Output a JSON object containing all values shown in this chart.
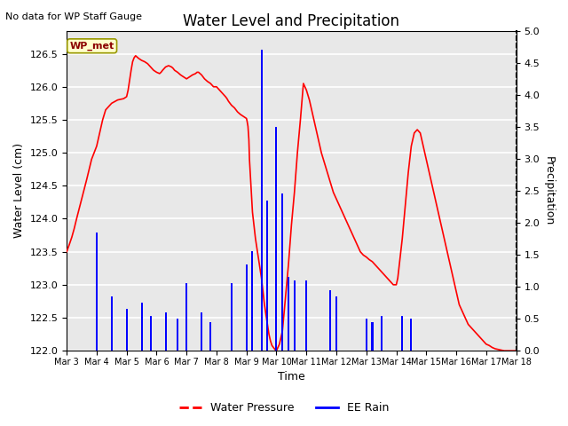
{
  "title": "Water Level and Precipitation",
  "subtitle": "No data for WP Staff Gauge",
  "xlabel": "Time",
  "ylabel_left": "Water Level (cm)",
  "ylabel_right": "Precipitation",
  "legend_label": "WP_met",
  "line1_label": "Water Pressure",
  "line2_label": "EE Rain",
  "ylim_left": [
    122.0,
    126.85
  ],
  "ylim_right": [
    0.0,
    5.0
  ],
  "yticks_left": [
    122.0,
    122.5,
    123.0,
    123.5,
    124.0,
    124.5,
    125.0,
    125.5,
    126.0,
    126.5
  ],
  "yticks_right": [
    0.0,
    0.5,
    1.0,
    1.5,
    2.0,
    2.5,
    3.0,
    3.5,
    4.0,
    4.5,
    5.0
  ],
  "axes_bg_color": "#e8e8e8",
  "grid_color": "white",
  "line1_color": "red",
  "line2_color": "blue",
  "water_level_x": [
    3.0,
    3.08,
    3.17,
    3.25,
    3.33,
    3.5,
    3.67,
    3.83,
    4.0,
    4.1,
    4.2,
    4.3,
    4.5,
    4.7,
    4.9,
    5.0,
    5.05,
    5.1,
    5.15,
    5.2,
    5.25,
    5.3,
    5.35,
    5.4,
    5.5,
    5.6,
    5.7,
    5.8,
    5.9,
    6.0,
    6.1,
    6.15,
    6.2,
    6.3,
    6.4,
    6.5,
    6.55,
    6.6,
    6.7,
    6.8,
    6.9,
    7.0,
    7.1,
    7.2,
    7.3,
    7.35,
    7.4,
    7.5,
    7.6,
    7.7,
    7.8,
    7.9,
    8.0,
    8.1,
    8.2,
    8.3,
    8.35,
    8.4,
    8.5,
    8.6,
    8.65,
    8.7,
    8.8,
    8.9,
    9.0,
    9.02,
    9.05,
    9.08,
    9.1,
    9.15,
    9.2,
    9.3,
    9.4,
    9.5,
    9.6,
    9.7,
    9.75,
    9.8,
    9.85,
    9.9,
    9.95,
    10.0,
    10.02,
    10.05,
    10.1,
    10.2,
    10.3,
    10.4,
    10.5,
    10.6,
    10.7,
    10.8,
    10.9,
    11.0,
    11.1,
    11.2,
    11.3,
    11.4,
    11.5,
    11.6,
    11.7,
    11.8,
    11.9,
    12.0,
    12.1,
    12.2,
    12.3,
    12.4,
    12.5,
    12.6,
    12.7,
    12.8,
    12.9,
    13.0,
    13.05,
    13.1,
    13.2,
    13.3,
    13.4,
    13.5,
    13.6,
    13.7,
    13.8,
    13.9,
    14.0,
    14.05,
    14.1,
    14.2,
    14.3,
    14.4,
    14.5,
    14.6,
    14.7,
    14.8,
    14.9,
    15.0,
    15.1,
    15.2,
    15.3,
    15.4,
    15.5,
    15.6,
    15.7,
    15.8,
    15.9,
    16.0,
    16.1,
    16.2,
    16.3,
    16.4,
    16.5,
    16.6,
    16.7,
    16.8,
    16.9,
    17.0,
    17.1,
    17.2,
    17.3,
    17.4,
    17.5,
    17.6,
    17.7,
    17.8,
    17.9,
    18.0
  ],
  "water_level_y": [
    123.5,
    123.6,
    123.72,
    123.85,
    124.0,
    124.3,
    124.6,
    124.9,
    125.1,
    125.3,
    125.5,
    125.65,
    125.75,
    125.8,
    125.82,
    125.85,
    125.95,
    126.1,
    126.25,
    126.38,
    126.44,
    126.47,
    126.45,
    126.43,
    126.4,
    126.38,
    126.35,
    126.3,
    126.25,
    126.22,
    126.2,
    126.22,
    126.25,
    126.3,
    126.32,
    126.3,
    126.28,
    126.25,
    126.22,
    126.18,
    126.15,
    126.12,
    126.15,
    126.18,
    126.2,
    126.22,
    126.22,
    126.18,
    126.12,
    126.08,
    126.05,
    126.0,
    126.0,
    125.95,
    125.9,
    125.85,
    125.82,
    125.78,
    125.72,
    125.68,
    125.65,
    125.62,
    125.58,
    125.55,
    125.52,
    125.48,
    125.4,
    125.2,
    124.9,
    124.5,
    124.1,
    123.7,
    123.4,
    123.1,
    122.7,
    122.4,
    122.25,
    122.15,
    122.08,
    122.05,
    122.02,
    122.0,
    122.02,
    122.05,
    122.1,
    122.3,
    122.8,
    123.3,
    123.9,
    124.4,
    125.0,
    125.5,
    126.05,
    125.95,
    125.8,
    125.6,
    125.4,
    125.2,
    125.0,
    124.85,
    124.7,
    124.55,
    124.4,
    124.3,
    124.2,
    124.1,
    124.0,
    123.9,
    123.8,
    123.7,
    123.6,
    123.5,
    123.45,
    123.42,
    123.4,
    123.38,
    123.35,
    123.3,
    123.25,
    123.2,
    123.15,
    123.1,
    123.05,
    123.0,
    123.0,
    123.1,
    123.3,
    123.7,
    124.2,
    124.7,
    125.1,
    125.3,
    125.35,
    125.3,
    125.1,
    124.9,
    124.7,
    124.5,
    124.3,
    124.1,
    123.9,
    123.7,
    123.5,
    123.3,
    123.1,
    122.9,
    122.7,
    122.6,
    122.5,
    122.4,
    122.35,
    122.3,
    122.25,
    122.2,
    122.15,
    122.1,
    122.08,
    122.05,
    122.03,
    122.02,
    122.01,
    122.0,
    122.0,
    122.0,
    122.0,
    122.0
  ],
  "rain_bars": [
    {
      "x": 4.0,
      "height": 1.85
    },
    {
      "x": 4.5,
      "height": 0.85
    },
    {
      "x": 5.0,
      "height": 0.65
    },
    {
      "x": 5.5,
      "height": 0.75
    },
    {
      "x": 5.8,
      "height": 0.55
    },
    {
      "x": 6.3,
      "height": 0.6
    },
    {
      "x": 6.7,
      "height": 0.5
    },
    {
      "x": 7.0,
      "height": 1.05
    },
    {
      "x": 7.5,
      "height": 0.6
    },
    {
      "x": 7.8,
      "height": 0.45
    },
    {
      "x": 8.5,
      "height": 1.05
    },
    {
      "x": 9.0,
      "height": 1.35
    },
    {
      "x": 9.2,
      "height": 1.55
    },
    {
      "x": 9.5,
      "height": 4.7
    },
    {
      "x": 9.7,
      "height": 2.35
    },
    {
      "x": 10.0,
      "height": 3.5
    },
    {
      "x": 10.2,
      "height": 2.45
    },
    {
      "x": 10.4,
      "height": 1.15
    },
    {
      "x": 10.6,
      "height": 1.1
    },
    {
      "x": 11.0,
      "height": 1.1
    },
    {
      "x": 11.8,
      "height": 0.95
    },
    {
      "x": 12.0,
      "height": 0.85
    },
    {
      "x": 13.0,
      "height": 0.5
    },
    {
      "x": 13.2,
      "height": 0.45
    },
    {
      "x": 13.5,
      "height": 0.55
    },
    {
      "x": 14.2,
      "height": 0.55
    },
    {
      "x": 14.5,
      "height": 0.5
    }
  ],
  "xtick_positions": [
    3,
    4,
    5,
    6,
    7,
    8,
    9,
    10,
    11,
    12,
    13,
    14,
    15,
    16,
    17,
    18
  ],
  "xtick_labels": [
    "Mar 3",
    "Mar 4",
    "Mar 5",
    "Mar 6",
    "Mar 7",
    "Mar 8",
    "Mar 9",
    "Mar 10",
    "Mar 11",
    "Mar 12",
    "Mar 13",
    "Mar 14",
    "Mar 15",
    "Mar 16",
    "Mar 17",
    "Mar 18"
  ]
}
